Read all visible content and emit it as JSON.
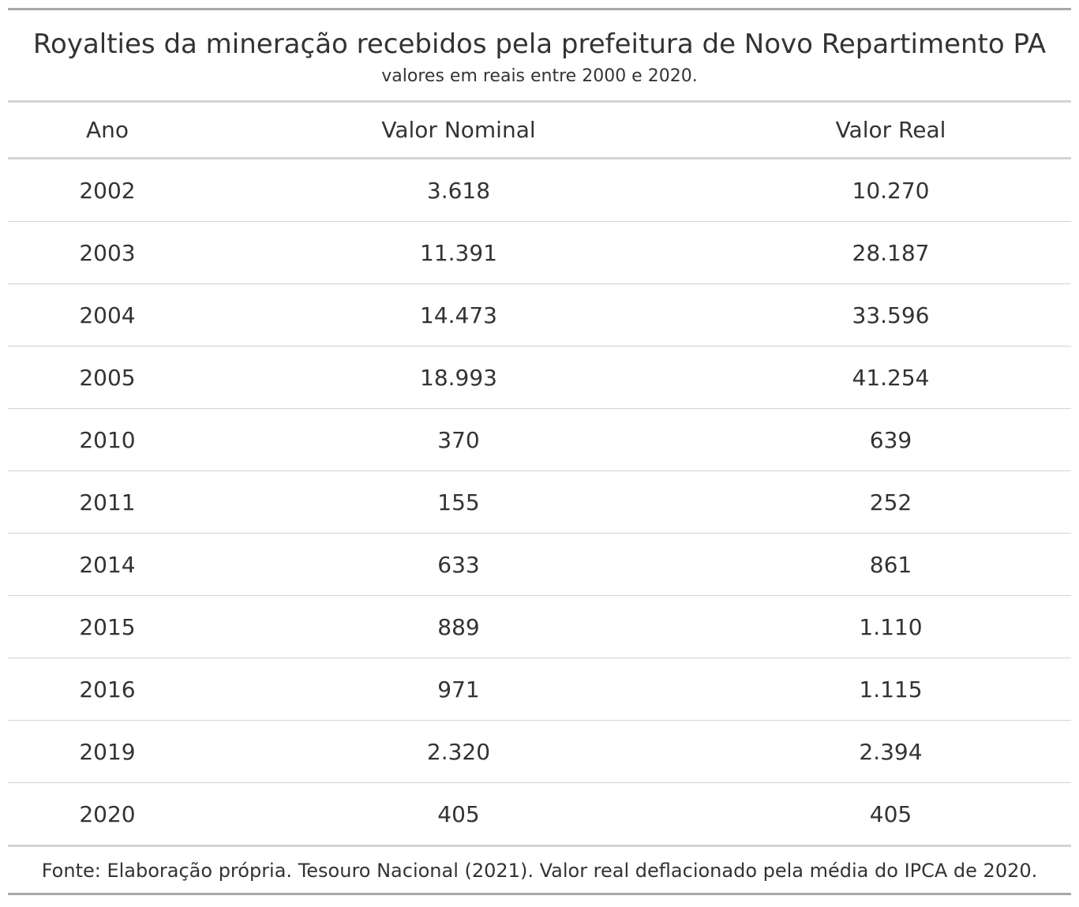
{
  "table": {
    "title": "Royalties da mineração recebidos pela prefeitura de Novo Repartimento PA",
    "subtitle": "valores em reais entre 2000 e 2020.",
    "headers": [
      "Ano",
      "Valor Nominal",
      "Valor Real"
    ],
    "rows": [
      [
        "2002",
        "3.618",
        "10.270"
      ],
      [
        "2003",
        "11.391",
        "28.187"
      ],
      [
        "2004",
        "14.473",
        "33.596"
      ],
      [
        "2005",
        "18.993",
        "41.254"
      ],
      [
        "2010",
        "370",
        "639"
      ],
      [
        "2011",
        "155",
        "252"
      ],
      [
        "2014",
        "633",
        "861"
      ],
      [
        "2015",
        "889",
        "1.110"
      ],
      [
        "2016",
        "971",
        "1.115"
      ],
      [
        "2019",
        "2.320",
        "2.394"
      ],
      [
        "2020",
        "405",
        "405"
      ]
    ],
    "source_note": "Fonte: Elaboração própria. Tesouro Nacional (2021). Valor real deflacionado pela média do IPCA de 2020."
  },
  "chart_data": {
    "type": "table",
    "title": "Royalties da mineração recebidos pela prefeitura de Novo Repartimento PA",
    "subtitle": "valores em reais entre 2000 e 2020.",
    "columns": [
      "Ano",
      "Valor Nominal",
      "Valor Real"
    ],
    "x": [
      2002,
      2003,
      2004,
      2005,
      2010,
      2011,
      2014,
      2015,
      2016,
      2019,
      2020
    ],
    "series": [
      {
        "name": "Valor Nominal",
        "values": [
          3618,
          11391,
          14473,
          18993,
          370,
          155,
          633,
          889,
          971,
          2320,
          405
        ]
      },
      {
        "name": "Valor Real",
        "values": [
          10270,
          28187,
          33596,
          41254,
          639,
          252,
          861,
          1110,
          1115,
          2394,
          405
        ]
      }
    ]
  }
}
